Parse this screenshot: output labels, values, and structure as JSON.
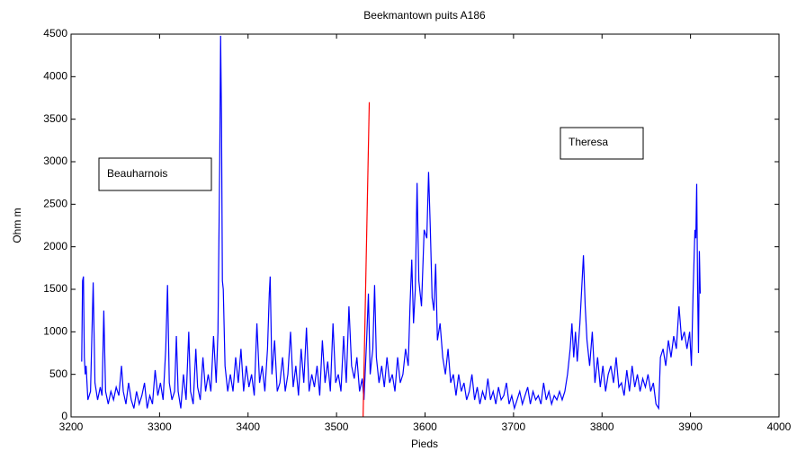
{
  "chart_data": {
    "type": "line",
    "title": "Beekmantown puits A186",
    "x_label": "Pieds",
    "y_label": "Ohm m",
    "annotations": [
      "Beauharnois",
      "Theresa"
    ],
    "xlim": [
      3200,
      4000
    ],
    "xticks": [
      3200,
      3300,
      3400,
      3500,
      3600,
      3700,
      3800,
      3900,
      4000
    ],
    "ylim": [
      0,
      4500
    ],
    "yticks": [
      0,
      500,
      1000,
      1500,
      2000,
      2500,
      3000,
      3500,
      4000,
      4500
    ],
    "grid": false,
    "series": [
      {
        "color": "#0000ff",
        "x": [
          3212,
          3213,
          3214,
          3215,
          3216,
          3217,
          3219,
          3222,
          3225,
          3227,
          3230,
          3233,
          3235,
          3237,
          3239,
          3242,
          3245,
          3248,
          3251,
          3254,
          3257,
          3259,
          3262,
          3265,
          3268,
          3271,
          3274,
          3277,
          3280,
          3283,
          3286,
          3289,
          3292,
          3295,
          3298,
          3301,
          3304,
          3307,
          3309,
          3311,
          3314,
          3317,
          3319,
          3321,
          3324,
          3327,
          3330,
          3333,
          3335,
          3338,
          3341,
          3343,
          3346,
          3349,
          3352,
          3355,
          3358,
          3361,
          3364,
          3366,
          3368,
          3369,
          3370,
          3371,
          3372,
          3374,
          3377,
          3380,
          3383,
          3386,
          3389,
          3392,
          3395,
          3398,
          3401,
          3404,
          3407,
          3410,
          3413,
          3416,
          3419,
          3422,
          3424,
          3425,
          3427,
          3430,
          3433,
          3436,
          3439,
          3442,
          3445,
          3448,
          3451,
          3454,
          3457,
          3460,
          3463,
          3466,
          3469,
          3472,
          3475,
          3478,
          3481,
          3484,
          3487,
          3490,
          3493,
          3496,
          3499,
          3502,
          3505,
          3508,
          3511,
          3514,
          3517,
          3520,
          3523,
          3526,
          3529,
          3531,
          3534,
          3536,
          3538,
          3541,
          3543,
          3545,
          3548,
          3551,
          3554,
          3557,
          3560,
          3563,
          3566,
          3569,
          3572,
          3575,
          3578,
          3581,
          3583,
          3585,
          3587,
          3589,
          3591,
          3593,
          3596,
          3599,
          3602,
          3604,
          3606,
          3608,
          3610,
          3612,
          3614,
          3617,
          3620,
          3623,
          3626,
          3629,
          3632,
          3635,
          3638,
          3641,
          3644,
          3647,
          3650,
          3653,
          3656,
          3659,
          3662,
          3665,
          3668,
          3671,
          3674,
          3677,
          3680,
          3683,
          3686,
          3689,
          3692,
          3695,
          3698,
          3701,
          3704,
          3707,
          3710,
          3713,
          3716,
          3719,
          3722,
          3725,
          3728,
          3731,
          3734,
          3737,
          3740,
          3743,
          3746,
          3749,
          3752,
          3755,
          3758,
          3761,
          3764,
          3766,
          3768,
          3770,
          3772,
          3775,
          3777,
          3779,
          3781,
          3783,
          3786,
          3789,
          3792,
          3795,
          3798,
          3801,
          3804,
          3807,
          3810,
          3813,
          3816,
          3819,
          3822,
          3825,
          3828,
          3831,
          3834,
          3837,
          3840,
          3843,
          3846,
          3849,
          3852,
          3855,
          3858,
          3861,
          3864,
          3866,
          3869,
          3872,
          3875,
          3878,
          3881,
          3884,
          3887,
          3890,
          3893,
          3896,
          3899,
          3901,
          3903,
          3905,
          3906,
          3907,
          3908,
          3909,
          3910,
          3911
        ],
        "values": [
          650,
          1600,
          1650,
          700,
          500,
          600,
          200,
          300,
          1580,
          400,
          200,
          350,
          250,
          1250,
          300,
          150,
          300,
          200,
          350,
          250,
          600,
          300,
          150,
          400,
          200,
          100,
          300,
          150,
          250,
          400,
          100,
          250,
          150,
          550,
          250,
          400,
          200,
          800,
          1550,
          400,
          200,
          300,
          950,
          300,
          100,
          500,
          200,
          1000,
          300,
          150,
          800,
          350,
          200,
          700,
          300,
          500,
          300,
          950,
          400,
          1000,
          3000,
          4480,
          3500,
          1600,
          1500,
          600,
          300,
          500,
          300,
          700,
          400,
          800,
          300,
          600,
          350,
          500,
          250,
          1100,
          400,
          600,
          300,
          800,
          1450,
          1650,
          500,
          900,
          300,
          400,
          700,
          300,
          500,
          1000,
          350,
          600,
          250,
          800,
          400,
          1050,
          300,
          500,
          350,
          600,
          250,
          900,
          400,
          650,
          300,
          1100,
          400,
          500,
          300,
          950,
          400,
          1300,
          600,
          450,
          700,
          300,
          450,
          200,
          900,
          1450,
          500,
          800,
          1550,
          700,
          400,
          600,
          350,
          700,
          400,
          500,
          300,
          700,
          400,
          500,
          800,
          600,
          1300,
          1850,
          1100,
          1500,
          2750,
          1600,
          1300,
          2200,
          2100,
          2880,
          2200,
          1400,
          1250,
          1800,
          900,
          1100,
          700,
          500,
          800,
          400,
          500,
          250,
          500,
          300,
          400,
          200,
          300,
          500,
          200,
          350,
          150,
          300,
          200,
          450,
          200,
          300,
          150,
          350,
          200,
          250,
          400,
          150,
          250,
          100,
          200,
          300,
          150,
          250,
          350,
          150,
          300,
          200,
          250,
          150,
          400,
          200,
          300,
          150,
          250,
          200,
          300,
          200,
          300,
          500,
          800,
          1100,
          700,
          1000,
          650,
          1100,
          1500,
          1900,
          1300,
          900,
          600,
          1000,
          400,
          700,
          350,
          600,
          300,
          500,
          600,
          400,
          700,
          350,
          400,
          250,
          550,
          300,
          600,
          350,
          500,
          300,
          450,
          350,
          500,
          300,
          400,
          150,
          100,
          700,
          800,
          600,
          900,
          700,
          950,
          800,
          1300,
          900,
          1000,
          800,
          1000,
          600,
          1500,
          2200,
          2100,
          2740,
          1500,
          750,
          1950,
          1450
        ]
      },
      {
        "color": "#ff0000",
        "x": [
          3530,
          3537
        ],
        "values": [
          0,
          3700
        ]
      }
    ]
  }
}
